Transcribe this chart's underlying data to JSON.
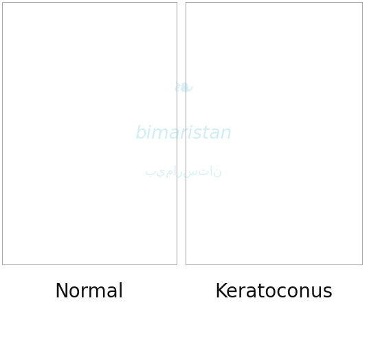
{
  "label_normal": "Normal",
  "label_keratoconus": "Keratoconus",
  "label_fontsize": 20,
  "label_color": "#111111",
  "bg_color": "#ffffff",
  "watermark_color": "#7ecfdf",
  "watermark_alpha": 0.35,
  "sclera_red": "#b84040",
  "sclera_red2": "#c85050",
  "blue_band": "#7aaec8",
  "blue_band2": "#5a8eae",
  "cornea_white": "#dce8f2",
  "cornea_front": "#c0d4e4",
  "iris_color": "#6090b0",
  "iris_dark": "#3a5a7a",
  "lens_color": "#e8f0f8",
  "lens_edge": "#a0bcd0",
  "lens_highlight": "#ffffff",
  "fiber_color": "#a0b8cc",
  "ciliary_dark": "#5a7a9a",
  "panel_border": "#aaaaaa"
}
